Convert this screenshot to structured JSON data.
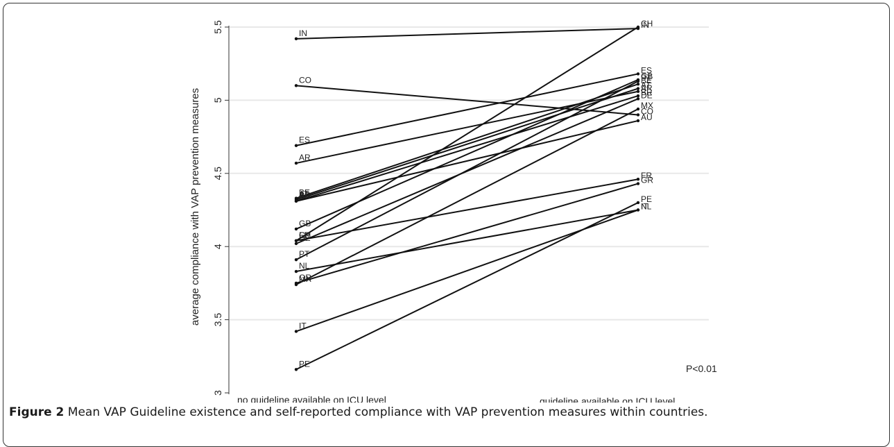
{
  "chart_data": {
    "type": "line",
    "title": "",
    "xlabel": "",
    "ylabel": "average compliance with VAP prevention measures",
    "categories": [
      "no guideline available on ICU level",
      "guideline available on ICU level"
    ],
    "ylim": [
      3,
      5.5
    ],
    "yticks": [
      "3",
      "3.5",
      "4",
      "4.5",
      "5",
      "5.5"
    ],
    "grid": "horizontal",
    "annotation": "P<0.01",
    "series": [
      {
        "name": "IN",
        "values": [
          5.42,
          5.49
        ]
      },
      {
        "name": "CO",
        "values": [
          5.1,
          4.9
        ]
      },
      {
        "name": "ES",
        "values": [
          4.69,
          5.18
        ]
      },
      {
        "name": "AR",
        "values": [
          4.57,
          5.06
        ]
      },
      {
        "name": "BE",
        "values": [
          4.33,
          5.11
        ]
      },
      {
        "name": "AT",
        "values": [
          4.32,
          5.08
        ]
      },
      {
        "name": "BR",
        "values": [
          4.31,
          5.03
        ]
      },
      {
        "name": "AU",
        "values": [
          4.31,
          4.86
        ]
      },
      {
        "name": "GB",
        "values": [
          4.12,
          5.14
        ]
      },
      {
        "name": "FR",
        "values": [
          4.04,
          4.46
        ]
      },
      {
        "name": "CH",
        "values": [
          4.04,
          5.5
        ]
      },
      {
        "name": "DE",
        "values": [
          4.02,
          5.01
        ]
      },
      {
        "name": "PT",
        "values": [
          3.91,
          5.13
        ]
      },
      {
        "name": "NL",
        "values": [
          3.83,
          4.25
        ]
      },
      {
        "name": "GR",
        "values": [
          3.75,
          4.43
        ]
      },
      {
        "name": "MX",
        "values": [
          3.74,
          4.94
        ]
      },
      {
        "name": "IT",
        "values": [
          3.42,
          4.25
        ]
      },
      {
        "name": "PE",
        "values": [
          3.16,
          4.3
        ]
      }
    ],
    "left_labels": [
      "IN",
      "CO",
      "ES",
      "AR",
      "BE",
      "AT",
      "BR",
      "AU",
      "GB",
      "FR",
      "CH",
      "DE",
      "PT",
      "NL",
      "GR",
      "MX",
      "IT",
      "PE"
    ],
    "right_labels": [
      "CH",
      "IN",
      "ES",
      "GB",
      "PT",
      "BE",
      "AT",
      "AR",
      "BR",
      "MX",
      "DE",
      "CO",
      "AU",
      "FR",
      "GR",
      "PE",
      "IT",
      "NL"
    ]
  },
  "caption": {
    "label": "Figure 2",
    "text": " Mean VAP Guideline existence and self-reported compliance with VAP prevention measures within countries."
  }
}
